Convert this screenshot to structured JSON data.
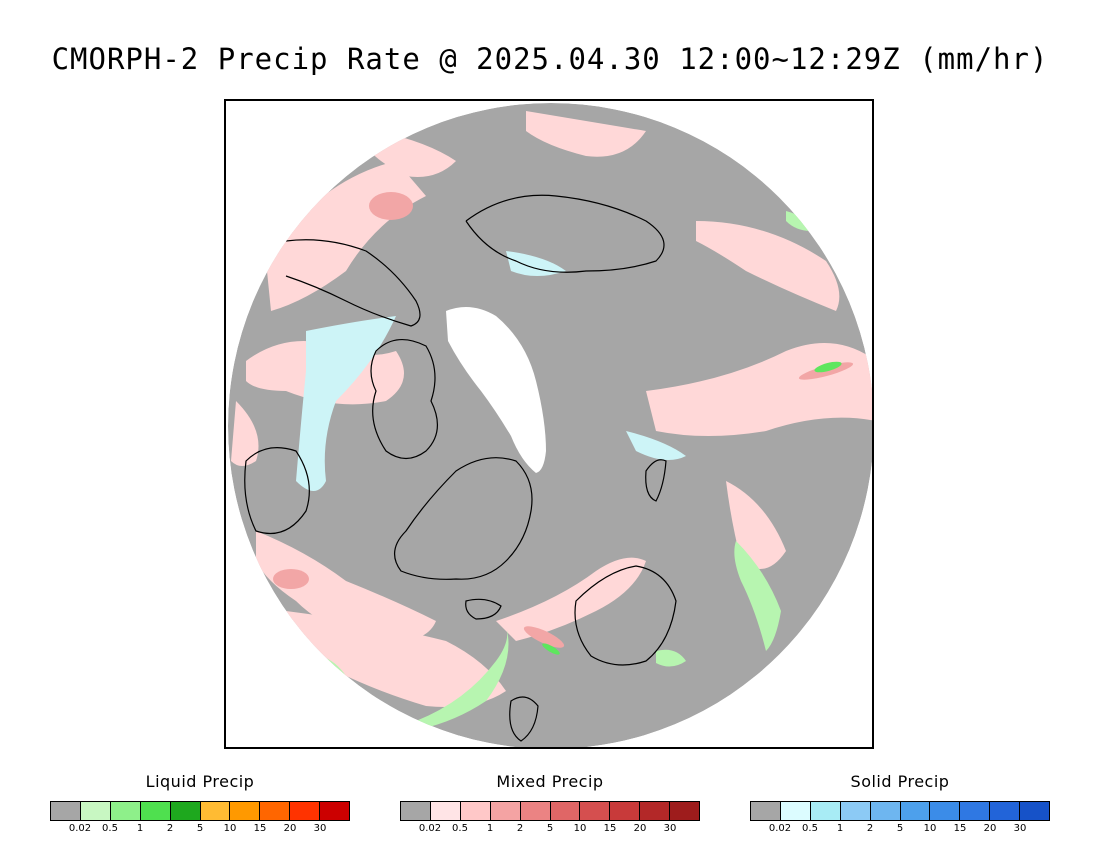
{
  "title": "CMORPH-2 Precip Rate @ 2025.04.30 12:00~12:29Z (mm/hr)",
  "colors": {
    "no_precip": "#a6a6a6",
    "mixed_light": "#ffd8d8",
    "mixed_mid": "#f2a6a6",
    "mixed_strong": "#e06a6a",
    "solid_light": "#cdf4f7",
    "liquid_light": "#b7f5b0",
    "liquid_mid": "#5ee65e",
    "ice_white": "#ffffff",
    "coast": "#000000"
  },
  "legends": [
    {
      "title": "Liquid Precip",
      "ticks": [
        "0.02",
        "0.5",
        "1",
        "2",
        "5",
        "10",
        "15",
        "20",
        "30"
      ],
      "colors": [
        "#a6a6a6",
        "#c8f7c2",
        "#8ef08a",
        "#4fe04f",
        "#1ea81e",
        "#ffbb33",
        "#ff9900",
        "#ff6600",
        "#ff3300",
        "#cc0000"
      ]
    },
    {
      "title": "Mixed Precip",
      "ticks": [
        "0.02",
        "0.5",
        "1",
        "2",
        "5",
        "10",
        "15",
        "20",
        "30"
      ],
      "colors": [
        "#a6a6a6",
        "#ffe4e6",
        "#ffc8c8",
        "#f4a3a3",
        "#eb8383",
        "#e06666",
        "#d54f4f",
        "#c83a3a",
        "#b32828",
        "#9e1c1c"
      ]
    },
    {
      "title": "Solid Precip",
      "ticks": [
        "0.02",
        "0.5",
        "1",
        "2",
        "5",
        "10",
        "15",
        "20",
        "30"
      ],
      "colors": [
        "#a6a6a6",
        "#dcfcff",
        "#a8ecf5",
        "#8ccaf5",
        "#6eb6f0",
        "#4da0ec",
        "#3b8ce8",
        "#2f78e3",
        "#2264d9",
        "#1652c8"
      ]
    }
  ]
}
